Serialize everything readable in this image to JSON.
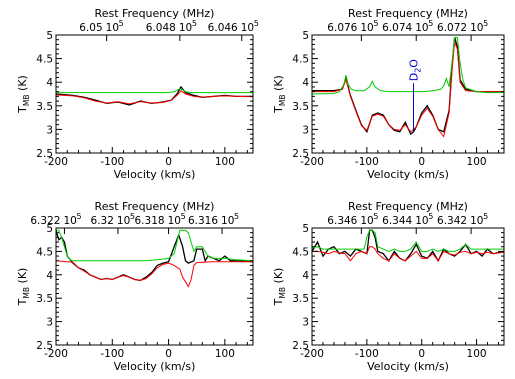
{
  "chart_data": [
    {
      "type": "line",
      "title": "Rest Frequency (MHz)",
      "xlabel": "Velocity (km/s)",
      "ylabel": "T",
      "ylabel_sub": "MB",
      "ylabel_unit": "(K)",
      "xlim": [
        -200,
        150
      ],
      "ylim": [
        2.5,
        5
      ],
      "x_ticks": [
        "-200",
        "-100",
        "0",
        "100"
      ],
      "x_tick_values": [
        -200,
        -100,
        0,
        100
      ],
      "y_ticks": [
        "2.5",
        "3",
        "3.5",
        "4",
        "4.5",
        "5"
      ],
      "y_tick_values": [
        2.5,
        3,
        3.5,
        4,
        4.5,
        5
      ],
      "top_ticks": [
        "6.05",
        "10",
        "5",
        "6.048",
        "10",
        "5",
        "6.046",
        "10",
        "5"
      ],
      "top_tick_velocities": [
        -110,
        20,
        130
      ],
      "series": [
        {
          "color": "#000000",
          "x": [
            -200,
            -170,
            -150,
            -130,
            -110,
            -90,
            -70,
            -50,
            -30,
            -10,
            5,
            15,
            22,
            30,
            45,
            60,
            80,
            100,
            120,
            150
          ],
          "y": [
            3.75,
            3.72,
            3.68,
            3.62,
            3.55,
            3.58,
            3.52,
            3.6,
            3.55,
            3.58,
            3.62,
            3.75,
            3.9,
            3.78,
            3.72,
            3.68,
            3.7,
            3.72,
            3.7,
            3.7
          ]
        },
        {
          "color": "#ff0000",
          "x": [
            -200,
            -170,
            -150,
            -130,
            -110,
            -90,
            -70,
            -50,
            -30,
            -10,
            5,
            15,
            22,
            30,
            45,
            60,
            80,
            100,
            120,
            150
          ],
          "y": [
            3.73,
            3.71,
            3.67,
            3.6,
            3.56,
            3.59,
            3.54,
            3.59,
            3.56,
            3.57,
            3.62,
            3.72,
            3.82,
            3.75,
            3.7,
            3.68,
            3.7,
            3.71,
            3.7,
            3.69
          ]
        },
        {
          "color": "#00cc00",
          "x": [
            -200,
            -150,
            -100,
            -50,
            0,
            10,
            20,
            25,
            30,
            40,
            60,
            100,
            150
          ],
          "y": [
            3.78,
            3.78,
            3.78,
            3.78,
            3.78,
            3.8,
            3.86,
            3.84,
            3.8,
            3.78,
            3.78,
            3.78,
            3.78
          ]
        }
      ],
      "annotations": []
    },
    {
      "type": "line",
      "title": "Rest Frequency (MHz)",
      "xlabel": "Velocity (km/s)",
      "ylabel": "T",
      "ylabel_sub": "MB",
      "ylabel_unit": "(K)",
      "xlim": [
        -200,
        150
      ],
      "ylim": [
        2.5,
        5
      ],
      "x_ticks": [
        "-200",
        "-100",
        "0",
        "100"
      ],
      "x_tick_values": [
        -200,
        -100,
        0,
        100
      ],
      "y_ticks": [
        "2.5",
        "3",
        "3.5",
        "4",
        "4.5",
        "5"
      ],
      "y_tick_values": [
        2.5,
        3,
        3.5,
        4,
        4.5,
        5
      ],
      "top_ticks": [
        "6.076",
        "10",
        "5",
        "6.074",
        "10",
        "5",
        "6.072",
        "10",
        "5"
      ],
      "top_tick_velocities": [
        -110,
        -10,
        90
      ],
      "series": [
        {
          "color": "#000000",
          "x": [
            -200,
            -160,
            -145,
            -138,
            -130,
            -120,
            -110,
            -100,
            -90,
            -80,
            -70,
            -60,
            -50,
            -40,
            -30,
            -20,
            -15,
            -10,
            0,
            10,
            20,
            30,
            40,
            50,
            55,
            60,
            65,
            70,
            80,
            100,
            120,
            150
          ],
          "y": [
            3.82,
            3.82,
            3.85,
            4.08,
            3.72,
            3.4,
            3.1,
            2.95,
            3.3,
            3.35,
            3.3,
            3.1,
            2.98,
            2.95,
            3.15,
            2.9,
            2.95,
            3.05,
            3.35,
            3.5,
            3.3,
            3.0,
            2.95,
            3.4,
            4.3,
            4.95,
            4.75,
            4.05,
            3.85,
            3.8,
            3.8,
            3.8
          ]
        },
        {
          "color": "#ff0000",
          "x": [
            -200,
            -160,
            -145,
            -138,
            -130,
            -120,
            -110,
            -100,
            -90,
            -80,
            -70,
            -60,
            -50,
            -40,
            -30,
            -20,
            -10,
            0,
            10,
            20,
            30,
            40,
            50,
            55,
            60,
            65,
            70,
            80,
            100,
            120,
            150
          ],
          "y": [
            3.8,
            3.8,
            3.85,
            4.05,
            3.7,
            3.38,
            3.08,
            2.98,
            3.28,
            3.32,
            3.28,
            3.1,
            3.0,
            2.98,
            3.1,
            2.95,
            3.05,
            3.3,
            3.45,
            3.28,
            3.0,
            2.85,
            3.35,
            4.2,
            4.85,
            4.7,
            4.0,
            3.82,
            3.8,
            3.8,
            3.8
          ]
        },
        {
          "color": "#00cc00",
          "x": [
            -200,
            -160,
            -150,
            -142,
            -138,
            -134,
            -128,
            -120,
            -105,
            -95,
            -90,
            -85,
            -75,
            -60,
            -40,
            -20,
            0,
            20,
            35,
            40,
            45,
            50,
            55,
            60,
            65,
            70,
            75,
            80,
            100,
            120,
            150
          ],
          "y": [
            3.75,
            3.76,
            3.8,
            3.95,
            4.15,
            3.95,
            3.85,
            3.82,
            3.82,
            3.9,
            4.02,
            3.9,
            3.82,
            3.8,
            3.8,
            3.8,
            3.8,
            3.82,
            3.85,
            3.92,
            4.08,
            3.9,
            4.4,
            4.95,
            4.95,
            4.4,
            4.05,
            3.88,
            3.8,
            3.78,
            3.78
          ]
        }
      ],
      "annotations": [
        {
          "text": "D",
          "sub": "2",
          "text2": "O",
          "x": -15,
          "color": "#0000cc"
        }
      ]
    },
    {
      "type": "line",
      "title": "Rest Frequency (MHz)",
      "xlabel": "Velocity (km/s)",
      "ylabel": "T",
      "ylabel_sub": "MB",
      "ylabel_unit": "(K)",
      "xlim": [
        -200,
        150
      ],
      "ylim": [
        2.5,
        5
      ],
      "x_ticks": [
        "-200",
        "-100",
        "0",
        "100"
      ],
      "x_tick_values": [
        -200,
        -100,
        0,
        100
      ],
      "y_ticks": [
        "2.5",
        "3",
        "3.5",
        "4",
        "4.5",
        "5"
      ],
      "y_tick_values": [
        2.5,
        3,
        3.5,
        4,
        4.5,
        5
      ],
      "top_ticks": [
        "6.322",
        "10",
        "5",
        "6.32",
        "10",
        "5",
        "6.318",
        "10",
        "5",
        "6.316",
        "10",
        "5"
      ],
      "top_tick_velocities": [
        -185,
        -90,
        0,
        95
      ],
      "series": [
        {
          "color": "#000000",
          "x": [
            -200,
            -195,
            -190,
            -185,
            -180,
            -170,
            -160,
            -150,
            -140,
            -130,
            -120,
            -110,
            -100,
            -90,
            -80,
            -70,
            -60,
            -50,
            -40,
            -30,
            -20,
            -10,
            0,
            10,
            18,
            25,
            30,
            35,
            45,
            50,
            60,
            65,
            70,
            80,
            90,
            100,
            110,
            120,
            150
          ],
          "y": [
            4.95,
            4.75,
            4.8,
            4.7,
            4.4,
            4.25,
            4.15,
            4.1,
            4.0,
            3.95,
            3.9,
            3.92,
            3.9,
            3.95,
            4.0,
            3.95,
            3.9,
            3.88,
            3.95,
            4.05,
            4.2,
            4.25,
            4.28,
            4.6,
            4.85,
            4.6,
            4.3,
            4.25,
            4.3,
            4.55,
            4.55,
            4.3,
            4.4,
            4.35,
            4.3,
            4.4,
            4.3,
            4.3,
            4.28
          ]
        },
        {
          "color": "#ff0000",
          "x": [
            -200,
            -170,
            -160,
            -150,
            -140,
            -130,
            -120,
            -110,
            -100,
            -90,
            -80,
            -70,
            -60,
            -50,
            -40,
            -30,
            -20,
            -10,
            0,
            10,
            20,
            25,
            30,
            35,
            40,
            45,
            50,
            60,
            80,
            100,
            120,
            150
          ],
          "y": [
            4.3,
            4.27,
            4.15,
            4.08,
            4.0,
            3.95,
            3.9,
            3.92,
            3.9,
            3.95,
            3.98,
            3.95,
            3.9,
            3.88,
            3.92,
            4.02,
            4.15,
            4.22,
            4.25,
            4.2,
            4.12,
            3.95,
            3.85,
            3.75,
            3.9,
            4.2,
            4.26,
            4.27,
            4.28,
            4.28,
            4.28,
            4.28
          ]
        },
        {
          "color": "#00cc00",
          "x": [
            -200,
            -195,
            -190,
            -185,
            -180,
            -175,
            -170,
            -160,
            -140,
            -120,
            -100,
            -80,
            -60,
            -40,
            -20,
            0,
            10,
            20,
            25,
            30,
            35,
            40,
            45,
            50,
            60,
            70,
            80,
            100,
            120,
            150
          ],
          "y": [
            4.95,
            4.95,
            4.8,
            4.6,
            4.4,
            4.32,
            4.3,
            4.3,
            4.3,
            4.3,
            4.3,
            4.3,
            4.3,
            4.3,
            4.32,
            4.35,
            4.45,
            4.95,
            4.95,
            4.95,
            4.9,
            4.7,
            4.5,
            4.6,
            4.6,
            4.4,
            4.35,
            4.35,
            4.32,
            4.3
          ]
        }
      ],
      "annotations": []
    },
    {
      "type": "line",
      "title": "Rest Frequency (MHz)",
      "xlabel": "Velocity (km/s)",
      "ylabel": "T",
      "ylabel_sub": "MB",
      "ylabel_unit": "(K)",
      "xlim": [
        -200,
        150
      ],
      "ylim": [
        2.5,
        5
      ],
      "x_ticks": [
        "-200",
        "-100",
        "0",
        "100"
      ],
      "x_tick_values": [
        -200,
        -100,
        0,
        100
      ],
      "y_ticks": [
        "2.5",
        "3",
        "3.5",
        "4",
        "4.5",
        "5"
      ],
      "y_tick_values": [
        2.5,
        3,
        3.5,
        4,
        4.5,
        5
      ],
      "top_ticks": [
        "6.346",
        "10",
        "5",
        "6.344",
        "10",
        "5",
        "6.342",
        "10",
        "5"
      ],
      "top_tick_velocities": [
        -110,
        -10,
        90
      ],
      "series": [
        {
          "color": "#000000",
          "x": [
            -200,
            -190,
            -180,
            -170,
            -160,
            -150,
            -140,
            -130,
            -120,
            -110,
            -100,
            -95,
            -90,
            -85,
            -80,
            -70,
            -60,
            -50,
            -40,
            -30,
            -20,
            -10,
            0,
            10,
            20,
            30,
            40,
            50,
            60,
            70,
            80,
            90,
            100,
            110,
            120,
            130,
            150
          ],
          "y": [
            4.5,
            4.7,
            4.4,
            4.55,
            4.6,
            4.45,
            4.5,
            4.4,
            4.55,
            4.5,
            4.45,
            4.95,
            4.95,
            4.8,
            4.5,
            4.45,
            4.3,
            4.5,
            4.35,
            4.3,
            4.45,
            4.65,
            4.4,
            4.35,
            4.5,
            4.3,
            4.55,
            4.45,
            4.4,
            4.5,
            4.65,
            4.45,
            4.5,
            4.4,
            4.55,
            4.45,
            4.5
          ]
        },
        {
          "color": "#ff0000",
          "x": [
            -200,
            -190,
            -180,
            -170,
            -160,
            -150,
            -140,
            -130,
            -120,
            -110,
            -100,
            -95,
            -90,
            -85,
            -80,
            -70,
            -60,
            -50,
            -40,
            -30,
            -20,
            -10,
            0,
            10,
            20,
            30,
            40,
            50,
            60,
            70,
            80,
            90,
            100,
            110,
            120,
            130,
            150
          ],
          "y": [
            4.5,
            4.5,
            4.48,
            4.45,
            4.5,
            4.47,
            4.45,
            4.3,
            4.45,
            4.5,
            4.45,
            4.6,
            4.6,
            4.55,
            4.45,
            4.35,
            4.3,
            4.45,
            4.35,
            4.3,
            4.4,
            4.5,
            4.35,
            4.35,
            4.45,
            4.3,
            4.5,
            4.45,
            4.42,
            4.48,
            4.5,
            4.45,
            4.48,
            4.45,
            4.48,
            4.45,
            4.48
          ]
        },
        {
          "color": "#00cc00",
          "x": [
            -200,
            -190,
            -180,
            -160,
            -140,
            -120,
            -105,
            -100,
            -95,
            -90,
            -85,
            -80,
            -70,
            -60,
            -50,
            -40,
            -30,
            -20,
            -10,
            0,
            10,
            20,
            30,
            40,
            50,
            60,
            70,
            80,
            90,
            100,
            120,
            150
          ],
          "y": [
            4.58,
            4.6,
            4.55,
            4.55,
            4.55,
            4.55,
            4.55,
            4.8,
            4.95,
            4.95,
            4.9,
            4.6,
            4.55,
            4.5,
            4.55,
            4.5,
            4.5,
            4.55,
            4.7,
            4.5,
            4.5,
            4.55,
            4.5,
            4.55,
            4.5,
            4.5,
            4.55,
            4.65,
            4.55,
            4.55,
            4.55,
            4.55
          ]
        }
      ],
      "annotations": []
    }
  ]
}
